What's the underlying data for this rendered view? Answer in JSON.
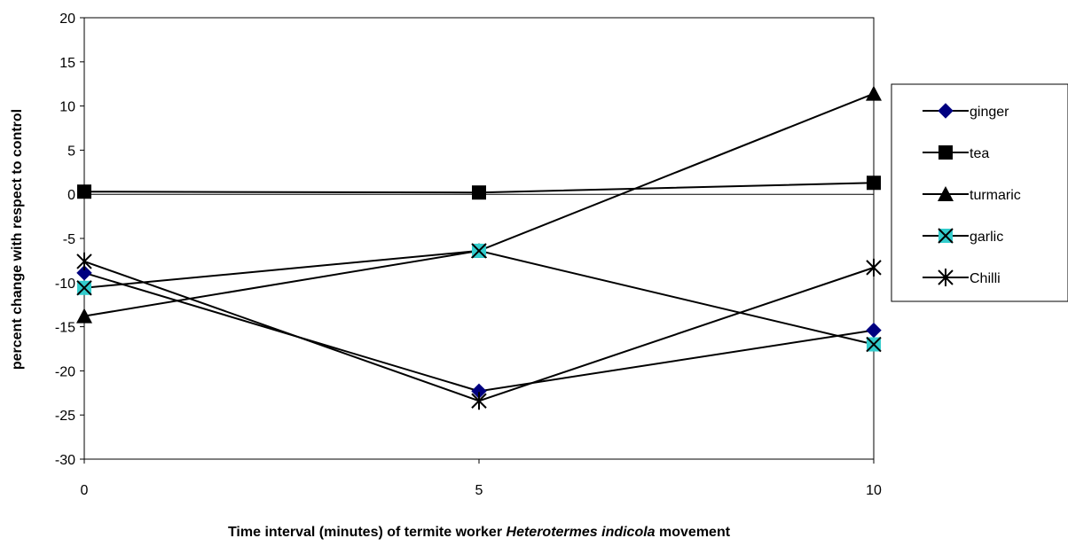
{
  "chart_data": {
    "type": "line",
    "xlabel": [
      "Time  interval (minutes) of termite worker",
      "Heterotermes indicola",
      "movement"
    ],
    "ylabel": "percent change with respect to control",
    "x": [
      0,
      5,
      10
    ],
    "xlim": [
      0,
      10
    ],
    "xticks": [
      0,
      5,
      10
    ],
    "ylim": [
      -30,
      20
    ],
    "yticks": [
      -30,
      -25,
      -20,
      -15,
      -10,
      -5,
      0,
      5,
      10,
      15,
      20
    ],
    "grid": false,
    "legend": "right",
    "series": [
      {
        "name": "ginger",
        "color": "#000080",
        "marker": "diamond",
        "values": [
          -8.9,
          -22.3,
          -15.4
        ]
      },
      {
        "name": "tea",
        "color": "#000000",
        "marker": "square",
        "values": [
          0.3,
          0.2,
          1.3
        ]
      },
      {
        "name": "turmaric",
        "color": "#000000",
        "marker": "triangle",
        "values": [
          -13.8,
          -6.4,
          11.4
        ]
      },
      {
        "name": "garlic",
        "color": "#33cccc",
        "marker": "xsquare",
        "values": [
          -10.6,
          -6.4,
          -17.0
        ]
      },
      {
        "name": "Chilli",
        "color": "#000000",
        "marker": "star",
        "values": [
          -7.6,
          -23.4,
          -8.3
        ]
      }
    ]
  }
}
